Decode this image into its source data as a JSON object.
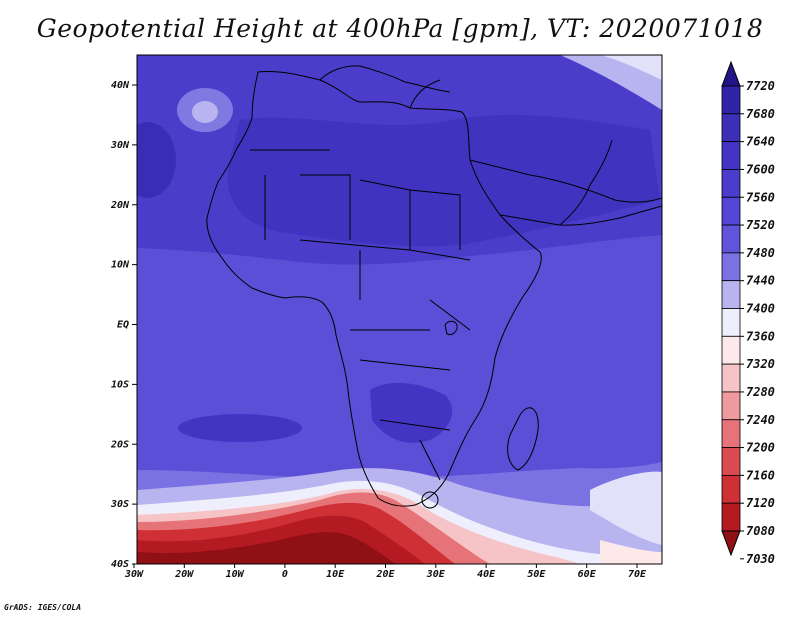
{
  "title": "Geopotential Height at 400hPa [gpm], VT: 2020071018",
  "credit": "GrADS: IGES/COLA",
  "lat_labels": [
    "40N",
    "30N",
    "20N",
    "10N",
    "EQ",
    "10S",
    "20S",
    "30S",
    "40S"
  ],
  "lon_labels": [
    "30W",
    "20W",
    "10W",
    "0",
    "10E",
    "20E",
    "30E",
    "40E",
    "50E",
    "60E",
    "70E"
  ],
  "colorbar": {
    "levels": [
      7720,
      7680,
      7640,
      7600,
      7560,
      7520,
      7480,
      7440,
      7400,
      7360,
      7320,
      7280,
      7240,
      7200,
      7160,
      7120,
      7080,
      7030
    ],
    "colors": [
      "#24148a",
      "#2f23a6",
      "#3c2fb8",
      "#4334c3",
      "#4b3dcb",
      "#5446d4",
      "#5f54da",
      "#7a72e3",
      "#b8b4f0",
      "#eeeefc",
      "#fde8ea",
      "#f6c3c6",
      "#ef9a9e",
      "#e57377",
      "#db4c52",
      "#cf3036",
      "#b41a22",
      "#8f1015"
    ]
  }
}
